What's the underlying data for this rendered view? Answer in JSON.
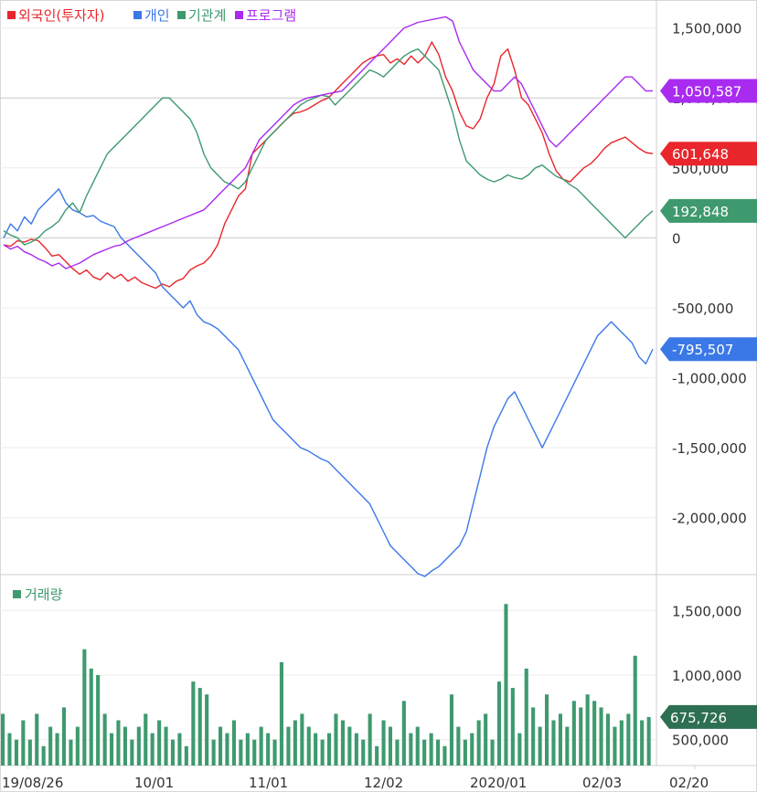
{
  "chart_data": [
    {
      "type": "line",
      "legend": {
        "placement": "top-left",
        "items": [
          {
            "name": "외국인(투자자)",
            "color": "#e8262c"
          },
          {
            "name": "개인",
            "color": "#3b78e7"
          },
          {
            "name": "기관계",
            "color": "#3e9a6e"
          },
          {
            "name": "프로그램",
            "color": "#a92bf0"
          }
        ]
      },
      "yticks": [
        1500000,
        1000000,
        500000,
        0,
        -500000,
        -1000000,
        -1500000,
        -2000000
      ],
      "ytick_labels": [
        "1,500,000",
        "1,000,000",
        "500,000",
        "0",
        "-500,000",
        "-1,000,000",
        "-1,500,000",
        "-2,000,000"
      ],
      "ylim": [
        -2400000,
        1700000
      ],
      "grid": true,
      "series": [
        {
          "name": "외국인(투자자)",
          "color": "#e8262c",
          "last_label": "601,648",
          "last_value": 601648,
          "values": [
            -50000,
            -60000,
            -20000,
            -30000,
            -10000,
            -20000,
            -70000,
            -130000,
            -120000,
            -170000,
            -220000,
            -260000,
            -230000,
            -280000,
            -300000,
            -250000,
            -290000,
            -260000,
            -310000,
            -280000,
            -320000,
            -340000,
            -360000,
            -330000,
            -350000,
            -310000,
            -290000,
            -230000,
            -200000,
            -180000,
            -130000,
            -50000,
            100000,
            200000,
            300000,
            350000,
            600000,
            650000,
            700000,
            750000,
            800000,
            850000,
            890000,
            900000,
            920000,
            950000,
            980000,
            1000000,
            1050000,
            1100000,
            1150000,
            1200000,
            1250000,
            1280000,
            1300000,
            1310000,
            1250000,
            1280000,
            1240000,
            1300000,
            1250000,
            1300000,
            1400000,
            1310000,
            1150000,
            1050000,
            900000,
            800000,
            780000,
            850000,
            1000000,
            1100000,
            1300000,
            1350000,
            1200000,
            1000000,
            950000,
            850000,
            750000,
            600000,
            480000,
            420000,
            400000,
            450000,
            500000,
            530000,
            580000,
            640000,
            680000,
            700000,
            720000,
            680000,
            640000,
            610000,
            601648
          ]
        },
        {
          "name": "개인",
          "color": "#3b78e7",
          "last_label": "-795,507",
          "last_value": -795507,
          "values": [
            0,
            100000,
            50000,
            150000,
            100000,
            200000,
            250000,
            300000,
            350000,
            250000,
            200000,
            180000,
            150000,
            160000,
            120000,
            100000,
            80000,
            0,
            -50000,
            -100000,
            -150000,
            -200000,
            -250000,
            -350000,
            -400000,
            -450000,
            -500000,
            -450000,
            -550000,
            -600000,
            -620000,
            -650000,
            -700000,
            -750000,
            -800000,
            -900000,
            -1000000,
            -1100000,
            -1200000,
            -1300000,
            -1350000,
            -1400000,
            -1450000,
            -1500000,
            -1520000,
            -1550000,
            -1580000,
            -1600000,
            -1650000,
            -1700000,
            -1750000,
            -1800000,
            -1850000,
            -1900000,
            -2000000,
            -2100000,
            -2200000,
            -2250000,
            -2300000,
            -2350000,
            -2400000,
            -2420000,
            -2380000,
            -2350000,
            -2300000,
            -2250000,
            -2200000,
            -2100000,
            -1900000,
            -1700000,
            -1500000,
            -1350000,
            -1250000,
            -1150000,
            -1100000,
            -1200000,
            -1300000,
            -1400000,
            -1500000,
            -1400000,
            -1300000,
            -1200000,
            -1100000,
            -1000000,
            -900000,
            -800000,
            -700000,
            -650000,
            -600000,
            -650000,
            -700000,
            -750000,
            -850000,
            -900000,
            -795507
          ]
        },
        {
          "name": "기관계",
          "color": "#3e9a6e",
          "last_label": "192,848",
          "last_value": 192848,
          "values": [
            50000,
            20000,
            0,
            -50000,
            -30000,
            0,
            50000,
            80000,
            120000,
            200000,
            250000,
            180000,
            300000,
            400000,
            500000,
            600000,
            650000,
            700000,
            750000,
            800000,
            850000,
            900000,
            950000,
            1000000,
            1000000,
            950000,
            900000,
            850000,
            750000,
            600000,
            500000,
            450000,
            400000,
            380000,
            350000,
            400000,
            500000,
            600000,
            700000,
            750000,
            800000,
            850000,
            900000,
            950000,
            980000,
            1000000,
            1020000,
            1010000,
            950000,
            1000000,
            1050000,
            1100000,
            1150000,
            1200000,
            1180000,
            1150000,
            1200000,
            1250000,
            1300000,
            1330000,
            1350000,
            1300000,
            1250000,
            1200000,
            1050000,
            900000,
            700000,
            550000,
            500000,
            450000,
            420000,
            400000,
            420000,
            450000,
            430000,
            420000,
            450000,
            500000,
            520000,
            480000,
            440000,
            420000,
            380000,
            350000,
            300000,
            250000,
            200000,
            150000,
            100000,
            50000,
            0,
            50000,
            100000,
            150000,
            192848
          ]
        },
        {
          "name": "프로그램",
          "color": "#a92bf0",
          "last_label": "1,050,587",
          "last_value": 1050587,
          "values": [
            -50000,
            -80000,
            -60000,
            -100000,
            -120000,
            -150000,
            -170000,
            -200000,
            -180000,
            -220000,
            -200000,
            -180000,
            -150000,
            -120000,
            -100000,
            -80000,
            -60000,
            -50000,
            -20000,
            0,
            20000,
            40000,
            60000,
            80000,
            100000,
            120000,
            140000,
            160000,
            180000,
            200000,
            250000,
            300000,
            350000,
            400000,
            450000,
            500000,
            600000,
            700000,
            750000,
            800000,
            850000,
            900000,
            950000,
            980000,
            1000000,
            1010000,
            1020000,
            1030000,
            1040000,
            1050000,
            1100000,
            1150000,
            1200000,
            1250000,
            1300000,
            1350000,
            1400000,
            1450000,
            1500000,
            1520000,
            1540000,
            1550000,
            1560000,
            1570000,
            1580000,
            1550000,
            1400000,
            1300000,
            1200000,
            1150000,
            1100000,
            1050000,
            1050000,
            1100000,
            1150000,
            1100000,
            1000000,
            900000,
            800000,
            700000,
            650000,
            700000,
            750000,
            800000,
            850000,
            900000,
            950000,
            1000000,
            1050000,
            1100000,
            1150000,
            1150000,
            1100000,
            1050000,
            1050587
          ]
        }
      ]
    },
    {
      "type": "bar",
      "title": "거래량",
      "color": "#3e9a6e",
      "yticks": [
        1500000,
        1000000,
        500000
      ],
      "ytick_labels": [
        "1,500,000",
        "1,000,000",
        "500,000"
      ],
      "ylim": [
        300000,
        1700000
      ],
      "last_label": "675,726",
      "last_value": 675726,
      "values": [
        700000,
        550000,
        500000,
        650000,
        500000,
        700000,
        450000,
        600000,
        550000,
        750000,
        500000,
        600000,
        1200000,
        1050000,
        1000000,
        700000,
        550000,
        650000,
        600000,
        500000,
        600000,
        700000,
        550000,
        650000,
        600000,
        500000,
        550000,
        450000,
        950000,
        900000,
        850000,
        500000,
        600000,
        550000,
        650000,
        500000,
        550000,
        500000,
        600000,
        550000,
        500000,
        1100000,
        600000,
        650000,
        700000,
        600000,
        550000,
        500000,
        550000,
        700000,
        650000,
        600000,
        550000,
        500000,
        700000,
        450000,
        650000,
        600000,
        500000,
        800000,
        550000,
        600000,
        500000,
        550000,
        500000,
        450000,
        850000,
        600000,
        500000,
        550000,
        650000,
        700000,
        500000,
        950000,
        1550000,
        900000,
        550000,
        1050000,
        750000,
        600000,
        850000,
        650000,
        700000,
        600000,
        800000,
        750000,
        850000,
        800000,
        750000,
        700000,
        600000,
        650000,
        700000,
        1150000,
        650000,
        675726
      ]
    },
    {
      "type": "axis",
      "xtick_labels": [
        "19/08/26",
        "10/01",
        "11/01",
        "12/02",
        "2020/01",
        "02/03",
        "02/20"
      ]
    }
  ]
}
